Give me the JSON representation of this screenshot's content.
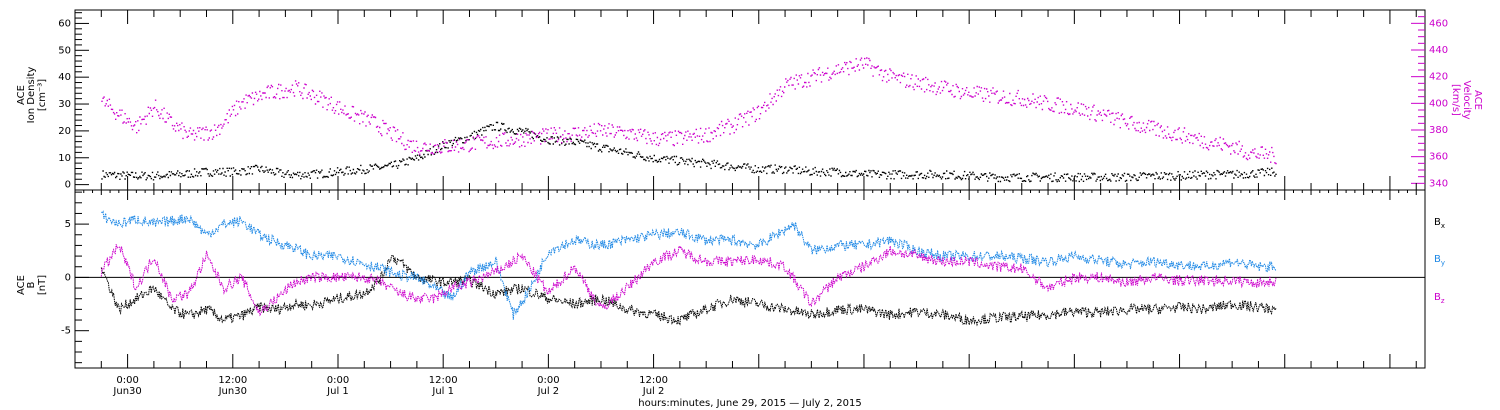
{
  "chart_data": [
    {
      "type": "scatter",
      "panel": "top",
      "ylabel_left": [
        "ACE",
        "Ion Density",
        "[cm⁻³]"
      ],
      "ylabel_right": [
        "ACE",
        "Velocity",
        "[km/s]"
      ],
      "ylim_left": [
        -2,
        65
      ],
      "yticks_left": [
        0,
        10,
        20,
        30,
        40,
        50,
        60
      ],
      "ylim_right": [
        335,
        470
      ],
      "yticks_right": [
        340,
        360,
        380,
        400,
        420,
        440,
        460
      ],
      "series": [
        {
          "axis": "left",
          "color": "#000000",
          "points": [
            [
              -3,
              4
            ],
            [
              0,
              3.5
            ],
            [
              3,
              3.5
            ],
            [
              6,
              4
            ],
            [
              9,
              5
            ],
            [
              12,
              5
            ],
            [
              15,
              6
            ],
            [
              18,
              4
            ],
            [
              21,
              4
            ],
            [
              24,
              5
            ],
            [
              27,
              6
            ],
            [
              30,
              7
            ],
            [
              33,
              10
            ],
            [
              36,
              15
            ],
            [
              39,
              18
            ],
            [
              41,
              21
            ],
            [
              42,
              22
            ],
            [
              45,
              20
            ],
            [
              48,
              17
            ],
            [
              51,
              16
            ],
            [
              54,
              14
            ],
            [
              57,
              12
            ],
            [
              60,
              10
            ],
            [
              63,
              9
            ],
            [
              66,
              8
            ],
            [
              69,
              7
            ],
            [
              72,
              6
            ],
            [
              75,
              6
            ],
            [
              78,
              5
            ],
            [
              81,
              5
            ],
            [
              84,
              4
            ],
            [
              87,
              4
            ],
            [
              90,
              4
            ],
            [
              93,
              4
            ],
            [
              96,
              3.5
            ],
            [
              99,
              3
            ],
            [
              102,
              3
            ],
            [
              105,
              3
            ],
            [
              108,
              3
            ],
            [
              111,
              3
            ],
            [
              114,
              3
            ],
            [
              117,
              3.5
            ],
            [
              120,
              3.5
            ],
            [
              123,
              4
            ],
            [
              126,
              4
            ],
            [
              129,
              4.5
            ],
            [
              131,
              5
            ]
          ]
        },
        {
          "axis": "right",
          "color": "#cc00cc",
          "points": [
            [
              -3,
              402
            ],
            [
              -1,
              392
            ],
            [
              1,
              383
            ],
            [
              3,
              398
            ],
            [
              5,
              385
            ],
            [
              7,
              376
            ],
            [
              10,
              380
            ],
            [
              13,
              401
            ],
            [
              16,
              408
            ],
            [
              19,
              412
            ],
            [
              22,
              404
            ],
            [
              25,
              394
            ],
            [
              28,
              386
            ],
            [
              30,
              378
            ],
            [
              32,
              370
            ],
            [
              33,
              368
            ],
            [
              36,
              368
            ],
            [
              39,
              370
            ],
            [
              42,
              372
            ],
            [
              45,
              374
            ],
            [
              48,
              376
            ],
            [
              51,
              378
            ],
            [
              54,
              380
            ],
            [
              57,
              378
            ],
            [
              60,
              374
            ],
            [
              63,
              374
            ],
            [
              66,
              377
            ],
            [
              69,
              384
            ],
            [
              72,
              394
            ],
            [
              75,
              414
            ],
            [
              78,
              420
            ],
            [
              81,
              426
            ],
            [
              84,
              430
            ],
            [
              87,
              420
            ],
            [
              90,
              416
            ],
            [
              93,
              412
            ],
            [
              96,
              408
            ],
            [
              99,
              406
            ],
            [
              102,
              404
            ],
            [
              105,
              400
            ],
            [
              108,
              397
            ],
            [
              111,
              392
            ],
            [
              114,
              386
            ],
            [
              117,
              381
            ],
            [
              120,
              377
            ],
            [
              123,
              372
            ],
            [
              126,
              368
            ],
            [
              128,
              363
            ],
            [
              131,
              361
            ]
          ]
        }
      ]
    },
    {
      "type": "line",
      "panel": "bottom",
      "ylabel_left": [
        "ACE",
        "B",
        "[nT]"
      ],
      "ylim_left": [
        -8.5,
        8.2
      ],
      "yticks_left": [
        -5,
        0,
        5
      ],
      "zero_line": true,
      "series": [
        {
          "name": "Bx",
          "color": "#000000",
          "points": [
            [
              -3,
              1
            ],
            [
              -1,
              -3
            ],
            [
              1,
              -2
            ],
            [
              3,
              -1
            ],
            [
              5,
              -3
            ],
            [
              7,
              -3.6
            ],
            [
              9,
              -3
            ],
            [
              11,
              -4
            ],
            [
              13,
              -3.6
            ],
            [
              15,
              -2.8
            ],
            [
              17,
              -3
            ],
            [
              19,
              -2.5
            ],
            [
              21,
              -2.6
            ],
            [
              24,
              -2
            ],
            [
              27,
              -1.5
            ],
            [
              29,
              0
            ],
            [
              30,
              2
            ],
            [
              31,
              1.5
            ],
            [
              33,
              0
            ],
            [
              36,
              -0.5
            ],
            [
              39,
              -0.3
            ],
            [
              42,
              -1.5
            ],
            [
              45,
              -1
            ],
            [
              48,
              -2
            ],
            [
              51,
              -2.5
            ],
            [
              54,
              -2
            ],
            [
              57,
              -3
            ],
            [
              60,
              -3.5
            ],
            [
              63,
              -4
            ],
            [
              66,
              -3
            ],
            [
              69,
              -2
            ],
            [
              72,
              -2.5
            ],
            [
              75,
              -3
            ],
            [
              78,
              -3.5
            ],
            [
              81,
              -3
            ],
            [
              84,
              -3
            ],
            [
              87,
              -3.5
            ],
            [
              90,
              -3.2
            ],
            [
              93,
              -3.5
            ],
            [
              96,
              -4
            ],
            [
              99,
              -3.8
            ],
            [
              102,
              -3.7
            ],
            [
              105,
              -3.5
            ],
            [
              108,
              -3.2
            ],
            [
              111,
              -3.3
            ],
            [
              114,
              -3
            ],
            [
              117,
              -3
            ],
            [
              120,
              -2.8
            ],
            [
              123,
              -3
            ],
            [
              126,
              -2.5
            ],
            [
              129,
              -2.8
            ],
            [
              131,
              -3
            ]
          ]
        },
        {
          "name": "By",
          "color": "#1e88e5",
          "points": [
            [
              -3,
              5.8
            ],
            [
              -1,
              5
            ],
            [
              1,
              5.5
            ],
            [
              3,
              5
            ],
            [
              5,
              5.3
            ],
            [
              7,
              5.6
            ],
            [
              9,
              4
            ],
            [
              11,
              5
            ],
            [
              13,
              5.3
            ],
            [
              15,
              4
            ],
            [
              17,
              3.3
            ],
            [
              19,
              2.8
            ],
            [
              21,
              2
            ],
            [
              24,
              2
            ],
            [
              27,
              1.3
            ],
            [
              29,
              0.8
            ],
            [
              31,
              0.2
            ],
            [
              33,
              0
            ],
            [
              35,
              -1
            ],
            [
              37,
              -2
            ],
            [
              39,
              0.5
            ],
            [
              42,
              1.5
            ],
            [
              44,
              -3.5
            ],
            [
              46,
              -1
            ],
            [
              48,
              2.5
            ],
            [
              51,
              3.5
            ],
            [
              54,
              3
            ],
            [
              57,
              3.5
            ],
            [
              60,
              4
            ],
            [
              63,
              4.2
            ],
            [
              66,
              3.5
            ],
            [
              69,
              3.5
            ],
            [
              72,
              3
            ],
            [
              74,
              4
            ],
            [
              76,
              5
            ],
            [
              78,
              2.5
            ],
            [
              81,
              3
            ],
            [
              84,
              3
            ],
            [
              87,
              3.5
            ],
            [
              90,
              2.5
            ],
            [
              93,
              2
            ],
            [
              96,
              2
            ],
            [
              99,
              2
            ],
            [
              102,
              1.8
            ],
            [
              105,
              1.5
            ],
            [
              108,
              2
            ],
            [
              111,
              1.6
            ],
            [
              114,
              1.2
            ],
            [
              117,
              1.5
            ],
            [
              120,
              1.2
            ],
            [
              123,
              1
            ],
            [
              126,
              1.5
            ],
            [
              129,
              1
            ],
            [
              131,
              1
            ]
          ]
        },
        {
          "name": "Bz",
          "color": "#cc00cc",
          "points": [
            [
              -3,
              0.5
            ],
            [
              -1,
              3
            ],
            [
              1,
              -1
            ],
            [
              3,
              2
            ],
            [
              5,
              -2
            ],
            [
              7,
              -1.5
            ],
            [
              9,
              2
            ],
            [
              11,
              -1
            ],
            [
              13,
              0
            ],
            [
              15,
              -3.3
            ],
            [
              17,
              -2
            ],
            [
              19,
              -0.5
            ],
            [
              21,
              0
            ],
            [
              24,
              0
            ],
            [
              27,
              0
            ],
            [
              29,
              -0.5
            ],
            [
              31,
              -1.5
            ],
            [
              33,
              -2
            ],
            [
              35,
              -2
            ],
            [
              37,
              -1
            ],
            [
              39,
              -0.5
            ],
            [
              42,
              0.5
            ],
            [
              45,
              2
            ],
            [
              48,
              -1.5
            ],
            [
              51,
              1
            ],
            [
              54,
              -3
            ],
            [
              57,
              -1
            ],
            [
              60,
              1.5
            ],
            [
              63,
              2.5
            ],
            [
              66,
              1.5
            ],
            [
              69,
              1.5
            ],
            [
              72,
              1.7
            ],
            [
              75,
              1
            ],
            [
              78,
              -2.5
            ],
            [
              81,
              0
            ],
            [
              84,
              1
            ],
            [
              87,
              2.5
            ],
            [
              90,
              2
            ],
            [
              93,
              1.5
            ],
            [
              96,
              1.5
            ],
            [
              99,
              1
            ],
            [
              102,
              0.8
            ],
            [
              105,
              -1
            ],
            [
              108,
              0
            ],
            [
              111,
              0
            ],
            [
              114,
              -0.5
            ],
            [
              117,
              0
            ],
            [
              120,
              -0.3
            ],
            [
              123,
              -0.3
            ],
            [
              126,
              -0.3
            ],
            [
              129,
              -0.5
            ],
            [
              131,
              -0.3
            ]
          ]
        }
      ]
    }
  ],
  "legend": {
    "bx": {
      "main": "B",
      "sub": "x",
      "color": "#000000"
    },
    "by": {
      "main": "B",
      "sub": "y",
      "color": "#1e88e5"
    },
    "bz": {
      "main": "B",
      "sub": "z",
      "color": "#cc00cc"
    }
  },
  "x_axis": {
    "xlim": [
      -6,
      148
    ],
    "xlabel": "hours:minutes, June 29, 2015 — July  2, 2015",
    "ticks": [
      {
        "x": 0,
        "time": "0:00",
        "date": "Jun30"
      },
      {
        "x": 12,
        "time": "12:00",
        "date": "Jun30"
      },
      {
        "x": 24,
        "time": "0:00",
        "date": "Jul 1"
      },
      {
        "x": 36,
        "time": "12:00",
        "date": "Jul 1"
      },
      {
        "x": 48,
        "time": "0:00",
        "date": "Jul 2"
      },
      {
        "x": 60,
        "time": "12:00",
        "date": "Jul 2"
      }
    ]
  }
}
